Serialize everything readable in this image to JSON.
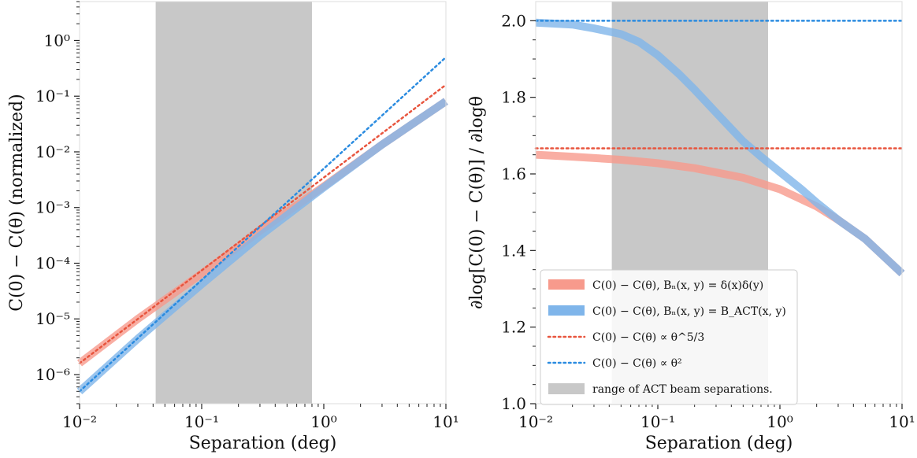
{
  "chart_data": [
    {
      "type": "line",
      "xlabel": "Separation (deg)",
      "ylabel": "C(0) − C(θ) (normalized)",
      "xscale": "log",
      "yscale": "log",
      "xlim": [
        0.01,
        10
      ],
      "ylim": [
        3e-07,
        5
      ],
      "xticks": [
        "10⁻²",
        "10⁻¹",
        "10⁰",
        "10¹"
      ],
      "yticks": [
        "10⁻⁶",
        "10⁻⁵",
        "10⁻⁴",
        "10⁻³",
        "10⁻²",
        "10⁻¹",
        "10⁰"
      ],
      "shaded_region": [
        0.042,
        0.8
      ],
      "grid": false,
      "series": [
        {
          "name": "C(0) − C(θ), Bₙ(x, y) = δ(x)δ(y)",
          "style": "thick",
          "color": "#f79a8c",
          "x": [
            0.01,
            0.03,
            0.1,
            0.3,
            1,
            3,
            10
          ],
          "y": [
            1.6e-06,
            1e-05,
            6.5e-05,
            0.00038,
            0.0024,
            0.0135,
            0.081
          ]
        },
        {
          "name": "C(0) − C(θ), Bₙ(x, y) = B_ACT(x, y)",
          "style": "thick",
          "color": "#7fb5ea",
          "x": [
            0.01,
            0.03,
            0.1,
            0.3,
            1,
            3,
            10
          ],
          "y": [
            5e-07,
            4.4e-06,
            4.2e-05,
            0.00031,
            0.0023,
            0.0135,
            0.081
          ]
        },
        {
          "name": "C(0) − C(θ) ∝ θ^5/3",
          "style": "dotted",
          "color": "#e8553e",
          "x": [
            0.01,
            10
          ],
          "y": [
            1.6e-06,
            0.16
          ]
        },
        {
          "name": "C(0) − C(θ) ∝ θ²",
          "style": "dotted",
          "color": "#2a8be0",
          "x": [
            0.01,
            10
          ],
          "y": [
            5e-07,
            0.5
          ]
        }
      ]
    },
    {
      "type": "line",
      "xlabel": "Separation (deg)",
      "ylabel": "∂log[C(0) − C(θ)] / ∂logθ",
      "xscale": "log",
      "yscale": "linear",
      "xlim": [
        0.01,
        10
      ],
      "ylim": [
        1.0,
        2.05
      ],
      "xticks": [
        "10⁻²",
        "10⁻¹",
        "10⁰",
        "10¹"
      ],
      "yticks": [
        "1.0",
        "1.2",
        "1.4",
        "1.6",
        "1.8",
        "2.0"
      ],
      "shaded_region": [
        0.042,
        0.8
      ],
      "grid": false,
      "legend": {
        "location": "lower-left",
        "entries": [
          {
            "label": "C(0) − C(θ), Bₙ(x, y) = δ(x)δ(y)",
            "kind": "thick",
            "color": "#f79a8c"
          },
          {
            "label": "C(0) − C(θ), Bₙ(x, y) = B_ACT(x, y)",
            "kind": "thick",
            "color": "#7fb5ea"
          },
          {
            "label": "C(0) − C(θ) ∝ θ^5/3",
            "kind": "dotted",
            "color": "#e8553e"
          },
          {
            "label": "C(0) − C(θ) ∝ θ²",
            "kind": "dotted",
            "color": "#2a8be0"
          },
          {
            "label": "range of ACT beam separations.",
            "kind": "patch",
            "color": "#c8c8c8"
          }
        ]
      },
      "series": [
        {
          "name": "C(0) − C(θ), Bₙ(x, y) = δ(x)δ(y)",
          "style": "thick",
          "color": "#f79a8c",
          "x": [
            0.01,
            0.02,
            0.05,
            0.1,
            0.2,
            0.5,
            1,
            2,
            3,
            5,
            10
          ],
          "y": [
            1.65,
            1.645,
            1.637,
            1.628,
            1.615,
            1.59,
            1.56,
            1.515,
            1.48,
            1.43,
            1.34
          ]
        },
        {
          "name": "C(0) − C(θ), Bₙ(x, y) = B_ACT(x, y)",
          "style": "thick",
          "color": "#7fb5ea",
          "x": [
            0.01,
            0.02,
            0.03,
            0.05,
            0.07,
            0.1,
            0.15,
            0.2,
            0.3,
            0.5,
            0.7,
            1,
            1.5,
            2,
            3,
            5,
            10
          ],
          "y": [
            1.995,
            1.99,
            1.98,
            1.965,
            1.945,
            1.91,
            1.86,
            1.82,
            1.76,
            1.685,
            1.645,
            1.605,
            1.56,
            1.525,
            1.48,
            1.43,
            1.34
          ]
        },
        {
          "name": "C(0) − C(θ) ∝ θ^5/3",
          "style": "dotted",
          "color": "#e8553e",
          "x": [
            0.01,
            10
          ],
          "y": [
            1.6667,
            1.6667
          ]
        },
        {
          "name": "C(0) − C(θ) ∝ θ²",
          "style": "dotted",
          "color": "#2a8be0",
          "x": [
            0.01,
            10
          ],
          "y": [
            2.0,
            2.0
          ]
        }
      ]
    }
  ]
}
